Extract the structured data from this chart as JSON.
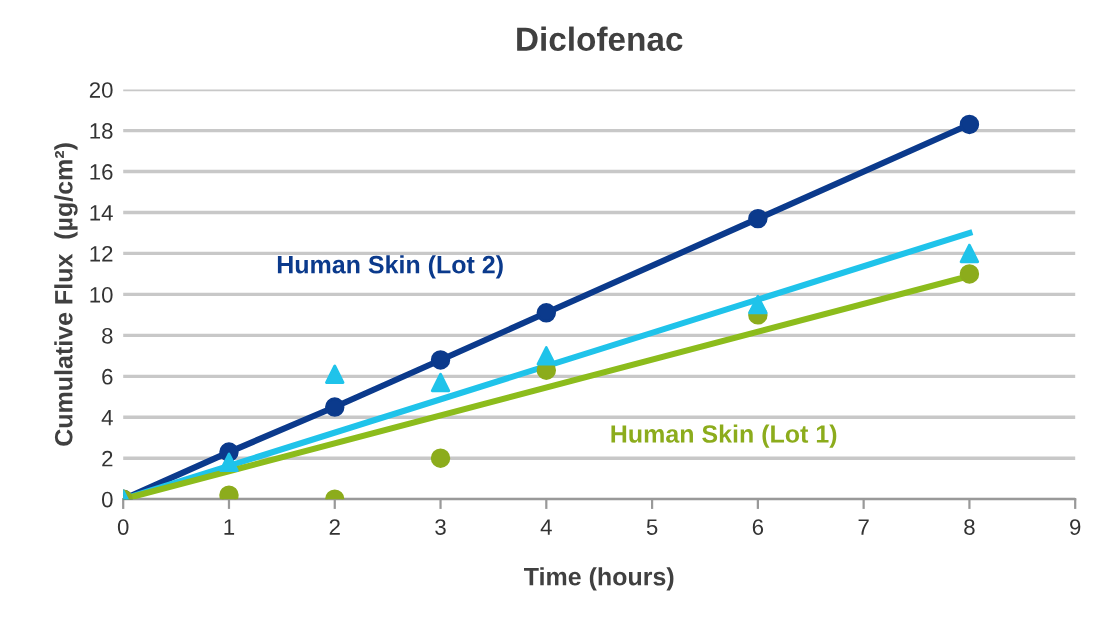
{
  "chart_data": {
    "type": "line",
    "title": "Diclofenac",
    "xlabel": "Time (hours)",
    "ylabel": "Cumulative Flux  (µg/cm²)",
    "xlim": [
      0,
      9
    ],
    "xticks": [
      0,
      1,
      2,
      3,
      4,
      5,
      6,
      7,
      8,
      9
    ],
    "ylim": [
      0,
      20
    ],
    "yticks": [
      0,
      2,
      4,
      6,
      8,
      10,
      12,
      14,
      16,
      18,
      20
    ],
    "grid": "y",
    "legend": false,
    "series": [
      {
        "name": "Human Skin (Lot 2)",
        "marker": "circle",
        "color": "#0b3a8c",
        "x": [
          0,
          1,
          2,
          3,
          4,
          6,
          8
        ],
        "values": [
          0,
          2.3,
          4.5,
          6.8,
          9.1,
          13.7,
          18.3
        ]
      },
      {
        "marker": "none",
        "color": "#1fc3ea",
        "x": [
          0,
          8
        ],
        "values": [
          0,
          13
        ]
      },
      {
        "type": "scatter",
        "marker": "triangle",
        "color": "#1fc3ea",
        "x": [
          0,
          1,
          2,
          3,
          4,
          6,
          8
        ],
        "values": [
          0,
          1.8,
          6.1,
          5.7,
          7.0,
          9.5,
          12.0
        ]
      },
      {
        "marker": "none",
        "color": "#8cbc1c",
        "x": [
          0,
          8
        ],
        "values": [
          0,
          10.9
        ]
      },
      {
        "name": "Human Skin (Lot 1)",
        "type": "scatter",
        "marker": "circle",
        "color": "#8cac1c",
        "x": [
          0,
          1,
          2,
          3,
          4,
          6,
          8
        ],
        "values": [
          0,
          0.2,
          0,
          2.0,
          6.3,
          9.0,
          11.0
        ]
      }
    ]
  }
}
